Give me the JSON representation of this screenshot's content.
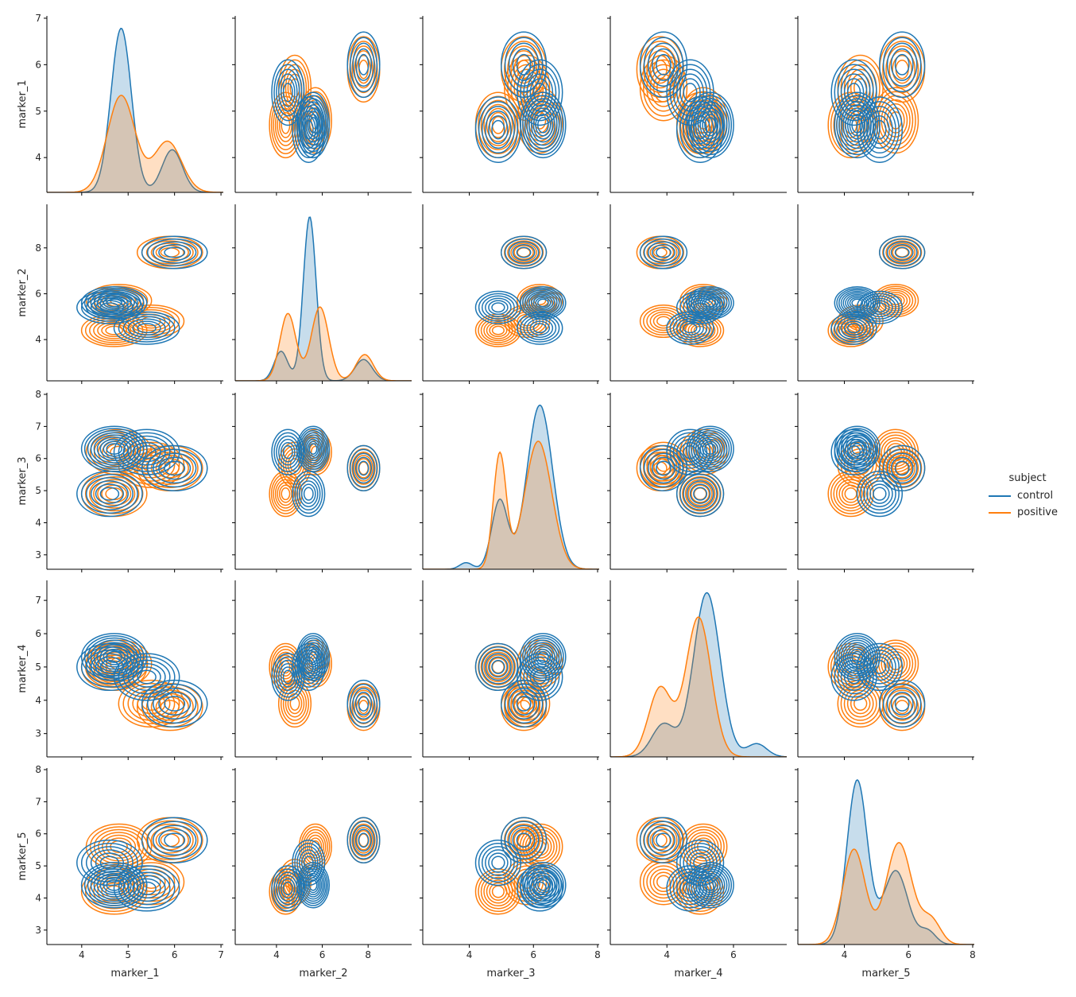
{
  "chart_data": {
    "type": "pairplot-kde",
    "title": "",
    "variables": [
      "marker_1",
      "marker_2",
      "marker_3",
      "marker_4",
      "marker_5"
    ],
    "hue": "subject",
    "legend": {
      "title": "subject",
      "position": "right",
      "entries": [
        {
          "label": "control",
          "color": "#1f77b4"
        },
        {
          "label": "positive",
          "color": "#ff7f0e"
        }
      ]
    },
    "axes": {
      "marker_1": {
        "lim": [
          3.25,
          7.05
        ],
        "ticks": [
          4,
          5,
          6,
          7
        ]
      },
      "marker_2": {
        "lim": [
          2.2,
          9.9
        ],
        "ticks": [
          4,
          6,
          8
        ]
      },
      "marker_3": {
        "lim": [
          2.55,
          8.05
        ],
        "ticks": [
          3,
          4,
          5,
          6,
          7,
          8
        ]
      },
      "marker_4": {
        "lim": [
          2.3,
          7.6
        ],
        "ticks": [
          3,
          4,
          5,
          6,
          7
        ]
      },
      "marker_5": {
        "lim": [
          2.55,
          8.05
        ],
        "ticks": [
          3,
          4,
          5,
          6,
          7,
          8
        ]
      }
    },
    "x_tick_labels": {
      "marker_1": [
        4,
        5,
        6,
        7
      ],
      "marker_2": [
        4,
        6,
        8
      ],
      "marker_3": [
        4,
        6,
        8
      ],
      "marker_4": [
        4,
        6
      ],
      "marker_5": [
        4,
        6,
        8
      ]
    },
    "y_tick_labels": {
      "marker_1": [
        4,
        5,
        6,
        7
      ],
      "marker_2": [
        4,
        6,
        8
      ],
      "marker_3": [
        3,
        4,
        5,
        6,
        7,
        8
      ],
      "marker_4": [
        3,
        4,
        5,
        6,
        7
      ],
      "marker_5": [
        3,
        4,
        5,
        6,
        7,
        8
      ]
    },
    "diagonal": {
      "marker_1": {
        "control": {
          "modes": [
            {
              "x": 4.85,
              "rel_height": 1.0,
              "sd": 0.22
            },
            {
              "x": 5.95,
              "rel_height": 0.26,
              "sd": 0.22
            }
          ]
        },
        "positive": {
          "modes": [
            {
              "x": 4.85,
              "rel_height": 0.59,
              "sd": 0.3
            },
            {
              "x": 5.85,
              "rel_height": 0.31,
              "sd": 0.3
            }
          ]
        }
      },
      "marker_2": {
        "control": {
          "modes": [
            {
              "x": 4.2,
              "rel_height": 0.18,
              "sd": 0.3
            },
            {
              "x": 5.45,
              "rel_height": 1.0,
              "sd": 0.28
            },
            {
              "x": 7.8,
              "rel_height": 0.13,
              "sd": 0.38
            }
          ]
        },
        "positive": {
          "modes": [
            {
              "x": 4.5,
              "rel_height": 0.41,
              "sd": 0.35
            },
            {
              "x": 5.9,
              "rel_height": 0.45,
              "sd": 0.38
            },
            {
              "x": 7.85,
              "rel_height": 0.16,
              "sd": 0.38
            }
          ]
        }
      },
      "marker_3": {
        "control": {
          "modes": [
            {
              "x": 3.9,
              "rel_height": 0.04,
              "sd": 0.2
            },
            {
              "x": 4.95,
              "rel_height": 0.42,
              "sd": 0.25
            },
            {
              "x": 6.2,
              "rel_height": 1.0,
              "sd": 0.4
            }
          ]
        },
        "positive": {
          "modes": [
            {
              "x": 4.95,
              "rel_height": 0.7,
              "sd": 0.2
            },
            {
              "x": 6.15,
              "rel_height": 0.78,
              "sd": 0.42
            }
          ]
        }
      },
      "marker_4": {
        "control": {
          "modes": [
            {
              "x": 3.9,
              "rel_height": 0.2,
              "sd": 0.35
            },
            {
              "x": 5.2,
              "rel_height": 1.0,
              "sd": 0.4
            },
            {
              "x": 6.7,
              "rel_height": 0.08,
              "sd": 0.3
            }
          ]
        },
        "positive": {
          "modes": [
            {
              "x": 3.8,
              "rel_height": 0.42,
              "sd": 0.35
            },
            {
              "x": 4.95,
              "rel_height": 0.85,
              "sd": 0.38
            }
          ]
        }
      },
      "marker_5": {
        "control": {
          "modes": [
            {
              "x": 4.4,
              "rel_height": 1.0,
              "sd": 0.32
            },
            {
              "x": 5.6,
              "rel_height": 0.45,
              "sd": 0.38
            },
            {
              "x": 6.6,
              "rel_height": 0.08,
              "sd": 0.25
            }
          ]
        },
        "positive": {
          "modes": [
            {
              "x": 4.3,
              "rel_height": 0.58,
              "sd": 0.35
            },
            {
              "x": 5.7,
              "rel_height": 0.62,
              "sd": 0.4
            },
            {
              "x": 6.7,
              "rel_height": 0.15,
              "sd": 0.3
            }
          ]
        }
      }
    },
    "clusters": {
      "control": [
        {
          "m1": 4.7,
          "m2": 5.6,
          "m3": 6.3,
          "m4": 5.3,
          "m5": 4.4,
          "w": 0.42
        },
        {
          "m1": 4.6,
          "m2": 5.4,
          "m3": 4.9,
          "m4": 5.0,
          "m5": 5.1,
          "w": 0.22
        },
        {
          "m1": 5.4,
          "m2": 4.5,
          "m3": 6.2,
          "m4": 4.7,
          "m5": 4.3,
          "w": 0.2
        },
        {
          "m1": 6.0,
          "m2": 7.8,
          "m3": 5.7,
          "m4": 3.9,
          "m5": 5.8,
          "w": 0.16
        }
      ],
      "positive": [
        {
          "m1": 4.7,
          "m2": 4.4,
          "m3": 4.9,
          "m4": 5.0,
          "m5": 4.2,
          "w": 0.3
        },
        {
          "m1": 4.8,
          "m2": 5.7,
          "m3": 6.2,
          "m4": 5.1,
          "m5": 5.6,
          "w": 0.3
        },
        {
          "m1": 5.5,
          "m2": 4.8,
          "m3": 5.8,
          "m4": 3.9,
          "m5": 4.5,
          "w": 0.2
        },
        {
          "m1": 5.9,
          "m2": 7.8,
          "m3": 5.7,
          "m4": 3.8,
          "m5": 5.8,
          "w": 0.2
        }
      ]
    }
  }
}
